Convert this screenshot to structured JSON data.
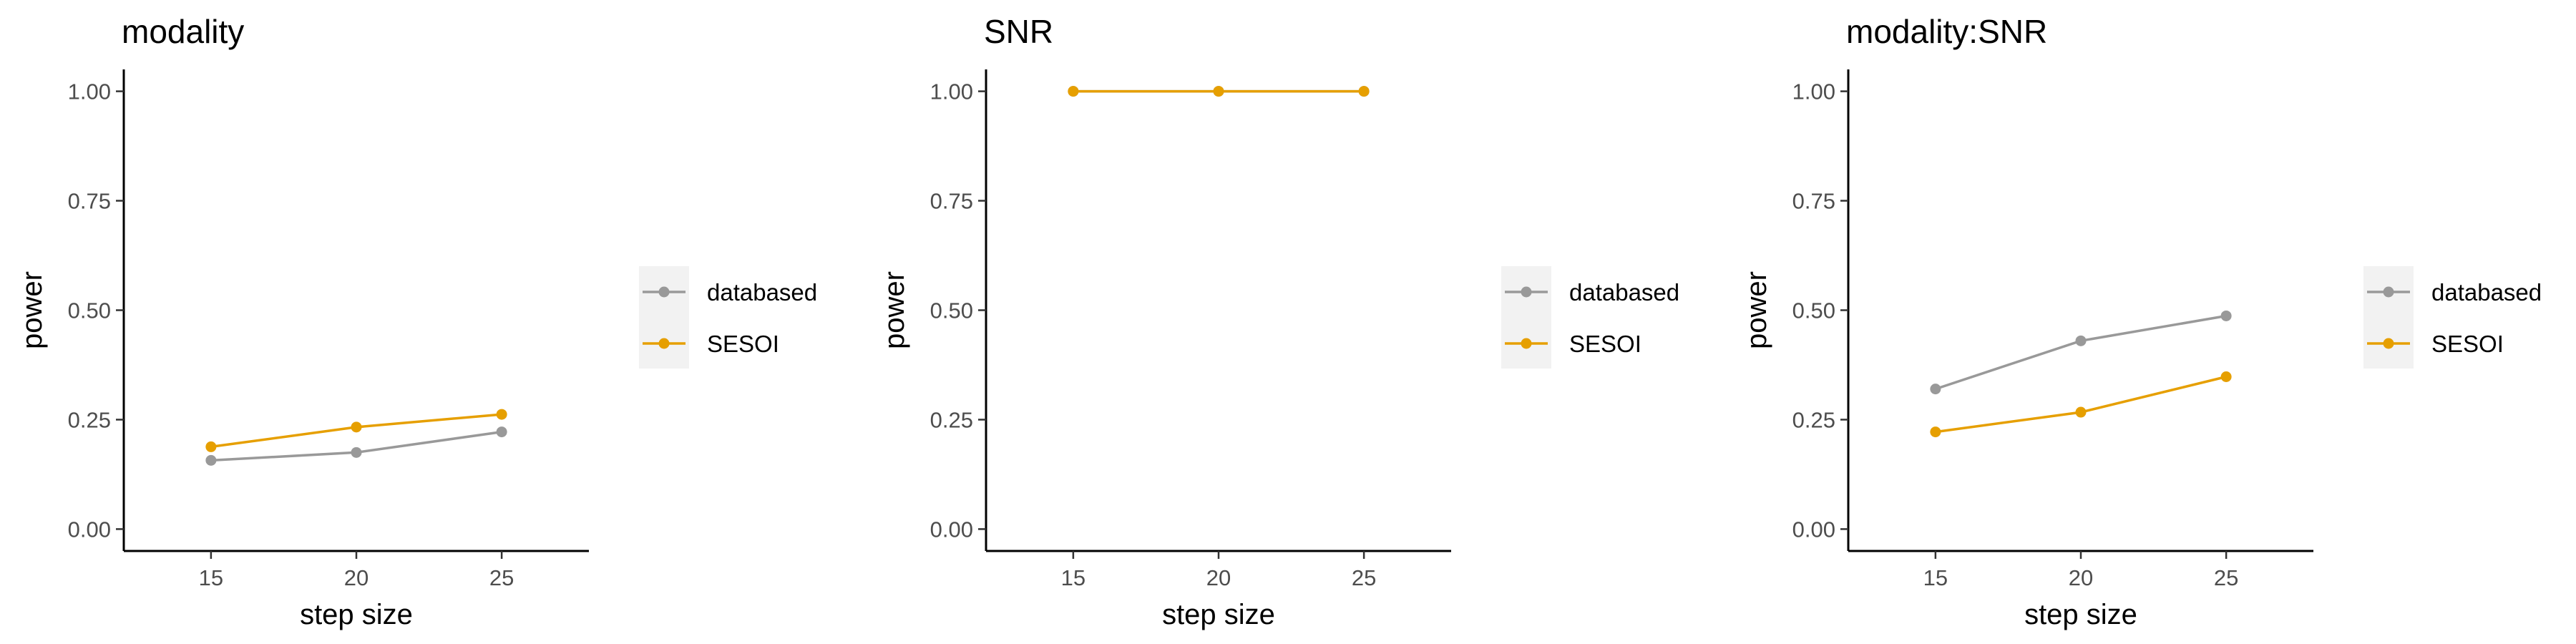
{
  "chart_data": [
    {
      "type": "line",
      "title": "modality",
      "xlabel": "step size",
      "ylabel": "power",
      "x": [
        15,
        20,
        25
      ],
      "xticks": [
        "15",
        "20",
        "25"
      ],
      "xlim": [
        12,
        28
      ],
      "ylim": [
        -0.05,
        1.05
      ],
      "yticks": [
        "0.00",
        "0.25",
        "0.50",
        "0.75",
        "1.00"
      ],
      "grid": false,
      "legend_position": "right",
      "series": [
        {
          "name": "databased",
          "color": "#999999",
          "values": [
            0.157,
            0.175,
            0.222
          ]
        },
        {
          "name": "SESOI",
          "color": "#E69F00",
          "values": [
            0.188,
            0.233,
            0.262
          ]
        }
      ]
    },
    {
      "type": "line",
      "title": "SNR",
      "xlabel": "step size",
      "ylabel": "power",
      "x": [
        15,
        20,
        25
      ],
      "xticks": [
        "15",
        "20",
        "25"
      ],
      "xlim": [
        12,
        28
      ],
      "ylim": [
        -0.05,
        1.05
      ],
      "yticks": [
        "0.00",
        "0.25",
        "0.50",
        "0.75",
        "1.00"
      ],
      "grid": false,
      "legend_position": "right",
      "series": [
        {
          "name": "databased",
          "color": "#999999",
          "values": [
            1.0,
            1.0,
            1.0
          ]
        },
        {
          "name": "SESOI",
          "color": "#E69F00",
          "values": [
            1.0,
            1.0,
            1.0
          ]
        }
      ]
    },
    {
      "type": "line",
      "title": "modality:SNR",
      "xlabel": "step size",
      "ylabel": "power",
      "x": [
        15,
        20,
        25
      ],
      "xticks": [
        "15",
        "20",
        "25"
      ],
      "xlim": [
        12,
        28
      ],
      "ylim": [
        -0.05,
        1.05
      ],
      "yticks": [
        "0.00",
        "0.25",
        "0.50",
        "0.75",
        "1.00"
      ],
      "grid": false,
      "legend_position": "right",
      "series": [
        {
          "name": "databased",
          "color": "#999999",
          "values": [
            0.32,
            0.43,
            0.487
          ]
        },
        {
          "name": "SESOI",
          "color": "#E69F00",
          "values": [
            0.222,
            0.267,
            0.348
          ]
        }
      ]
    }
  ]
}
